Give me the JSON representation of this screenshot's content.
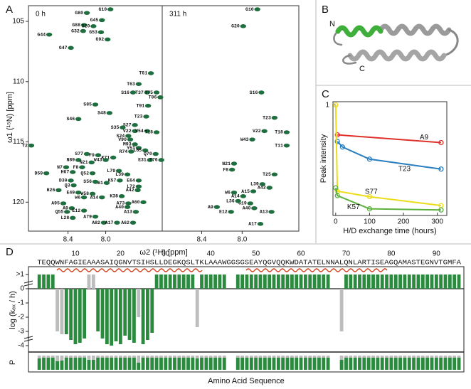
{
  "panel_labels": [
    "A",
    "B",
    "C",
    "D"
  ],
  "structure": {
    "n_terminus": "N",
    "c_terminus": "C"
  },
  "chart_data": [
    {
      "type": "scatter",
      "title": "0 h",
      "x_label": "ω2 (¹H) [ppm]",
      "y_label": "ω1 (¹⁵N) [ppm]",
      "color": "#1f6e3f",
      "xlim": [
        8.82,
        7.4
      ],
      "ylim": [
        103.7,
        122.4
      ],
      "xticks": [
        8.4,
        {
          "value": 8,
          "label": "8.0"
        }
      ],
      "yticks": [
        105,
        110,
        115,
        120
      ],
      "x": [
        8.2,
        7.95,
        8.04,
        8.23,
        8.13,
        8.24,
        8.05,
        8.6,
        7.98,
        8.37,
        7.52,
        7.65,
        7.71,
        7.56,
        7.46,
        7.42,
        7.55,
        8.11,
        7.96,
        7.57,
        7.69,
        8.29,
        7.82,
        7.69,
        7.56,
        7.46,
        7.76,
        7.74,
        7.69,
        7.65,
        7.58,
        7.47,
        7.53,
        7.41,
        8.79,
        7.73,
        8.2,
        8.08,
        7.92,
        8.29,
        8.0,
        8.15,
        8.42,
        8.25,
        8.35,
        8.14,
        7.86,
        8.63,
        8.37,
        8.34,
        8.29,
        8.5,
        8.14,
        7.65,
        7.65,
        7.66,
        7.85,
        7.83,
        8.04,
        7.6,
        7.76,
        8.45,
        8.36,
        8.23,
        8.41,
        7.77,
        7.68,
        8.11,
        8.35,
        8.02,
        7.88,
        7.71,
        7.77,
        7.99,
        8.11,
        8.23
      ],
      "values": [
        104.3,
        104.0,
        104.9,
        105.3,
        105.4,
        105.8,
        105.9,
        106.1,
        106.5,
        107.2,
        109.3,
        110.2,
        110.9,
        110.9,
        110.9,
        111.3,
        112.0,
        111.9,
        112.6,
        112.9,
        113.6,
        113.1,
        113.8,
        114.1,
        114.1,
        114.2,
        114.5,
        114.8,
        115.2,
        115.5,
        115.7,
        116.0,
        116.5,
        116.5,
        115.3,
        115.8,
        116.0,
        116.1,
        116.3,
        116.5,
        116.5,
        116.7,
        117.1,
        117.1,
        117.5,
        117.6,
        117.4,
        117.6,
        118.2,
        118.6,
        119.2,
        119.0,
        119.3,
        118.2,
        118.7,
        119.0,
        118.2,
        119.5,
        119.6,
        120.0,
        120.1,
        120.1,
        120.5,
        120.7,
        120.8,
        120.4,
        120.8,
        121.2,
        121.3,
        121.7,
        121.7,
        121.7,
        117.7,
        118.4,
        118.3,
        119.6
      ],
      "labels": [
        "G80",
        "G10",
        "G45",
        "G88",
        "G20",
        "G32",
        "G53",
        "G44",
        "G92",
        "G47",
        "T61",
        "T63",
        "S16",
        "T37",
        "T75",
        "T86",
        "T91",
        "S85",
        "S48",
        "T23",
        "S27",
        "S46",
        "S35",
        "V22",
        "V54",
        "T18",
        "S24",
        "V90",
        "M93",
        "Y51",
        "L65",
        "Q70",
        "E31",
        "T76",
        "T2",
        "R74",
        "S77",
        "F9",
        "K71",
        "N89",
        "W43",
        "N21",
        "N7",
        "F8",
        "H67",
        "Q52",
        "L79",
        "D59",
        "D30",
        "Q3",
        "E49",
        "H26",
        "W58",
        "E64",
        "L72",
        "A42",
        "K57",
        "K38",
        "A14",
        "A60",
        "A73",
        "A95",
        "A9",
        "E12",
        "Q55",
        "A40",
        "A13",
        "A79",
        "L28",
        "A82",
        "A17",
        "A62",
        "L39",
        "A61",
        "S56",
        "W6"
      ]
    },
    {
      "type": "scatter",
      "title": "311 h",
      "color": "#1f6e3f",
      "xlim": [
        8.79,
        7.44
      ],
      "ylim": [
        103.7,
        122.4
      ],
      "xticks": [
        8.4,
        {
          "value": 8,
          "label": "8.0"
        }
      ],
      "x": [
        7.85,
        7.99,
        7.81,
        7.68,
        7.78,
        7.56,
        7.56,
        7.9,
        8.08,
        8.1,
        7.68,
        7.8,
        7.73,
        7.89,
        8.08,
        7.99,
        7.92,
        8.04,
        8.25,
        8.11,
        7.88,
        7.71,
        7.82
      ],
      "values": [
        104.0,
        105.4,
        110.9,
        113.0,
        114.1,
        114.2,
        115.3,
        114.8,
        116.8,
        117.3,
        117.7,
        118.5,
        118.8,
        119.1,
        119.2,
        119.5,
        120.1,
        119.9,
        120.4,
        120.8,
        120.5,
        120.8,
        121.8
      ],
      "labels": [
        "G10",
        "G20",
        "S16",
        "T23",
        "V22",
        "T18",
        "T11",
        "W43",
        "N21",
        "F8",
        "T25",
        "L39",
        "A42",
        "A15",
        "W6",
        "A14",
        "G19",
        "L36",
        "A9",
        "E12",
        "A40",
        "A13",
        "A17"
      ]
    },
    {
      "type": "line",
      "x_label": "H/D exchange time (hours)",
      "y_label": "Peak intensity",
      "xlim": [
        -8,
        328
      ],
      "ylim": [
        0,
        1.03
      ],
      "xticks": [
        0,
        100,
        200,
        300
      ],
      "yticks": [
        1
      ],
      "series": [
        {
          "name": "A9",
          "color": "#e0302a",
          "x": [
            5,
            311
          ],
          "values": [
            0.73,
            0.66
          ]
        },
        {
          "name": "T23",
          "color": "#2a7fc0",
          "x": [
            5,
            20,
            100,
            311
          ],
          "values": [
            0.67,
            0.62,
            0.51,
            0.42
          ]
        },
        {
          "name": "S77",
          "color": "#ecdc1c",
          "x": [
            0,
            5,
            100,
            311
          ],
          "values": [
            1.0,
            0.22,
            0.17,
            0.09
          ]
        },
        {
          "name": "K57",
          "color": "#5cb040",
          "x": [
            0,
            5,
            100,
            311
          ],
          "values": [
            0.25,
            0.18,
            0.06,
            0.05
          ]
        }
      ]
    },
    {
      "type": "bar",
      "y_label": "log (kₑₓ / h)",
      "sequence": "TEQQWNFAGIEAAASAIQGNVTSIHSLLDEGKQSLTKLAAAWGGSGSEAYQGVQQKWDATATELNNALQNLARTISEAGQAMASTEGNVTGMFA",
      "xlim": [
        -0.4,
        96.1
      ],
      "ylim": [
        -4.3,
        1.3
      ],
      "xticks": [
        10,
        20,
        30,
        40,
        50,
        60,
        70,
        80,
        90
      ],
      "yticks": [
        {
          "value": 1,
          "label": ">1"
        },
        0,
        -1,
        -2,
        -3,
        -4
      ],
      "x": [
        2,
        3,
        4,
        5,
        6,
        7,
        8,
        9,
        10,
        11,
        12,
        13,
        14,
        15,
        16,
        17,
        18,
        19,
        20,
        21,
        22,
        23,
        24,
        25,
        26,
        27,
        28,
        29,
        30,
        31,
        32,
        33,
        34,
        35,
        36,
        37,
        38,
        39,
        40,
        41,
        42,
        43,
        44,
        45,
        46,
        47,
        48,
        49,
        50,
        51,
        52,
        53,
        54,
        55,
        56,
        57,
        58,
        59,
        60,
        61,
        62,
        63,
        64,
        65,
        66,
        67,
        68,
        69,
        70,
        71,
        72,
        73,
        74,
        75,
        76,
        77,
        78,
        79,
        80,
        81,
        82,
        83,
        84,
        85,
        86,
        87,
        88,
        89,
        90,
        91,
        92,
        93,
        94,
        95
      ],
      "series": [
        {
          "color": "#2a8a3e",
          "values": [
            1,
            1,
            1,
            1,
            null,
            null,
            -3.2,
            -3.6,
            -3.9,
            -3.8,
            -3.5,
            null,
            null,
            -3.0,
            -3.5,
            -3.9,
            -4.0,
            -3.7,
            -3.9,
            -3.3,
            -3.6,
            -3.8,
            null,
            -3.9,
            -3.6,
            -3.1,
            1,
            1,
            1,
            1,
            1,
            1,
            1,
            1,
            1,
            null,
            1,
            1,
            1,
            1,
            1,
            1,
            null,
            null,
            1,
            1,
            1,
            1,
            1,
            1,
            1,
            1,
            1,
            1,
            1,
            1,
            1,
            1,
            1,
            1,
            1,
            1,
            1,
            1,
            1,
            null,
            null,
            null,
            1,
            1,
            1,
            1,
            1,
            1,
            1,
            1,
            1,
            1,
            1,
            1,
            1,
            1,
            1,
            1,
            1,
            1,
            1,
            1,
            1,
            1,
            1,
            1,
            1,
            1
          ]
        },
        {
          "color": "#bdbdbd",
          "values": [
            null,
            null,
            null,
            null,
            -3.0,
            -3.2,
            null,
            null,
            null,
            null,
            null,
            1,
            1,
            null,
            null,
            null,
            null,
            null,
            null,
            null,
            null,
            null,
            -2.0,
            null,
            null,
            null,
            null,
            null,
            null,
            null,
            null,
            null,
            null,
            null,
            null,
            -2.7,
            null,
            null,
            null,
            null,
            null,
            null,
            null,
            null,
            null,
            null,
            null,
            null,
            null,
            null,
            null,
            null,
            null,
            null,
            null,
            null,
            null,
            null,
            null,
            null,
            null,
            null,
            null,
            null,
            null,
            null,
            null,
            -3.0,
            null,
            null,
            null,
            null,
            null,
            null,
            null,
            null,
            null,
            null,
            null,
            null,
            null,
            null,
            null,
            null,
            null,
            null,
            null,
            null,
            null,
            null,
            null,
            null,
            null,
            null
          ]
        }
      ]
    },
    {
      "type": "bar",
      "y_label": "P",
      "x_label": "Amino Acid Sequence",
      "xlim": [
        -0.4,
        96.1
      ],
      "ylim": [
        0,
        1.05
      ],
      "x": [
        2,
        3,
        4,
        5,
        6,
        7,
        8,
        9,
        10,
        11,
        12,
        13,
        14,
        15,
        16,
        17,
        18,
        19,
        20,
        21,
        22,
        23,
        24,
        25,
        26,
        27,
        28,
        29,
        30,
        31,
        32,
        33,
        34,
        35,
        36,
        37,
        38,
        39,
        40,
        41,
        42,
        43,
        44,
        45,
        46,
        47,
        48,
        49,
        50,
        51,
        52,
        53,
        54,
        55,
        56,
        57,
        58,
        59,
        60,
        61,
        62,
        63,
        64,
        65,
        66,
        67,
        68,
        69,
        70,
        71,
        72,
        73,
        74,
        75,
        76,
        77,
        78,
        79,
        80,
        81,
        82,
        83,
        84,
        85,
        86,
        87,
        88,
        89,
        90,
        91,
        92,
        93,
        94,
        95
      ],
      "series": [
        {
          "color": "#bdbdbd",
          "values": [
            1,
            1,
            1,
            1,
            1,
            1,
            1,
            1,
            1,
            1,
            1,
            1,
            1,
            1,
            1,
            1,
            1,
            1,
            1,
            1,
            1,
            1,
            1,
            1,
            1,
            1,
            1,
            1,
            1,
            1,
            1,
            1,
            1,
            1,
            1,
            1,
            1,
            1,
            1,
            1,
            1,
            1,
            null,
            null,
            1,
            1,
            1,
            1,
            1,
            1,
            1,
            1,
            1,
            1,
            1,
            1,
            1,
            1,
            1,
            1,
            1,
            1,
            1,
            1,
            1,
            null,
            null,
            1,
            1,
            1,
            1,
            1,
            1,
            1,
            1,
            1,
            1,
            1,
            1,
            1,
            1,
            1,
            1,
            1,
            1,
            1,
            1,
            1,
            1,
            1,
            1,
            1,
            1,
            1
          ]
        },
        {
          "color": "#2a8a3e",
          "values": [
            0.8,
            0.85,
            0.85,
            0.85,
            0.6,
            0.65,
            0.85,
            0.85,
            0.85,
            0.85,
            0.85,
            0.7,
            0.7,
            0.85,
            0.85,
            0.85,
            0.85,
            0.85,
            0.85,
            0.85,
            0.85,
            0.85,
            0.5,
            0.85,
            0.85,
            0.85,
            0.85,
            0.85,
            0.85,
            0.85,
            0.85,
            0.85,
            0.85,
            0.85,
            0.85,
            0.8,
            0.85,
            0.85,
            0.85,
            0.85,
            0.85,
            0.85,
            null,
            null,
            0.85,
            0.85,
            0.85,
            0.85,
            0.85,
            0.85,
            0.85,
            0.85,
            0.85,
            0.85,
            0.85,
            0.85,
            0.85,
            0.85,
            0.85,
            0.85,
            0.85,
            0.85,
            0.85,
            0.85,
            0.85,
            null,
            null,
            0.7,
            0.85,
            0.85,
            0.85,
            0.85,
            0.85,
            0.85,
            0.85,
            0.85,
            0.85,
            0.85,
            0.85,
            0.85,
            0.85,
            0.85,
            0.85,
            0.85,
            0.85,
            0.85,
            0.85,
            0.85,
            0.85,
            0.85,
            0.85,
            0.85,
            0.85,
            0.85
          ]
        }
      ]
    }
  ]
}
